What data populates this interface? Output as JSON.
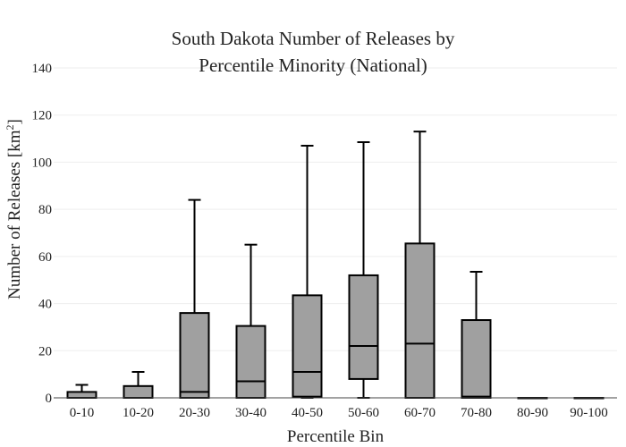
{
  "chart_data": {
    "type": "box",
    "title_lines": [
      "South Dakota Number of Releases by",
      "Percentile Minority (National)"
    ],
    "xlabel": "Percentile Bin",
    "ylabel_main": "Number of Releases  [km",
    "ylabel_sup": "2",
    "ylabel_end": "]",
    "ylim": [
      0,
      140
    ],
    "yticks": [
      0,
      20,
      40,
      60,
      80,
      100,
      120,
      140
    ],
    "ytick_labels": [
      "0",
      "20",
      "40",
      "60",
      "80",
      "100",
      "120",
      "140"
    ],
    "grid": true,
    "box_color": "#a0a0a0",
    "categories": [
      "0-10",
      "10-20",
      "20-30",
      "30-40",
      "40-50",
      "50-60",
      "60-70",
      "70-80",
      "80-90",
      "90-100"
    ],
    "boxes": [
      {
        "min": 0,
        "q1": 0,
        "median": 0,
        "q3": 2.5,
        "max": 5.5
      },
      {
        "min": 0,
        "q1": 0,
        "median": 0,
        "q3": 5,
        "max": 11
      },
      {
        "min": 0,
        "q1": 0,
        "median": 2.5,
        "q3": 36,
        "max": 84
      },
      {
        "min": 0,
        "q1": 0,
        "median": 7,
        "q3": 30.5,
        "max": 65
      },
      {
        "min": 0,
        "q1": 0.5,
        "median": 11,
        "q3": 43.5,
        "max": 107
      },
      {
        "min": 0,
        "q1": 8,
        "median": 22,
        "q3": 52,
        "max": 108.5
      },
      {
        "min": 0,
        "q1": 0,
        "median": 23,
        "q3": 65.5,
        "max": 113
      },
      {
        "min": 0,
        "q1": 0,
        "median": 0.5,
        "q3": 33,
        "max": 53.5
      },
      {
        "min": 0,
        "q1": 0,
        "median": 0,
        "q3": 0,
        "max": 0
      },
      {
        "min": 0,
        "q1": 0,
        "median": 0,
        "q3": 0,
        "max": 0
      }
    ]
  }
}
